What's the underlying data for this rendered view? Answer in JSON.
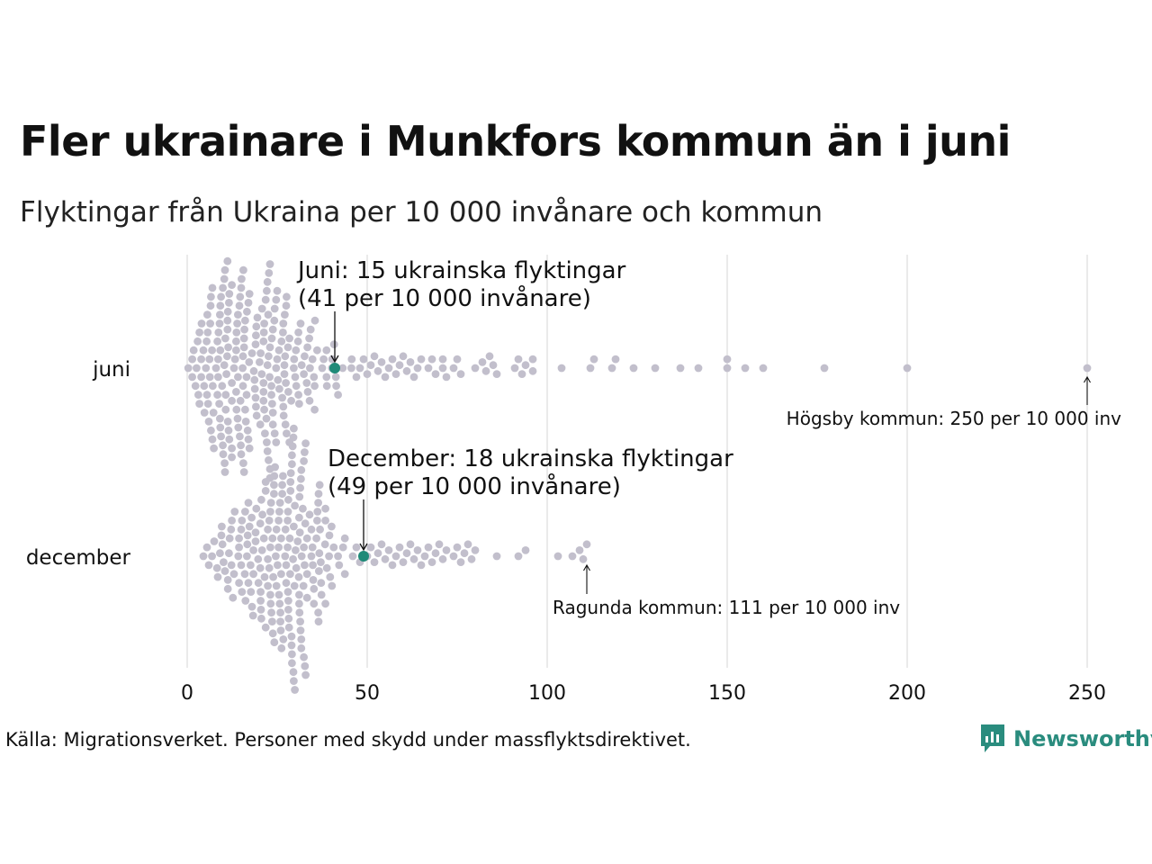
{
  "chart_data": {
    "type": "scatter",
    "subtype": "beeswarm",
    "title": "Fler ukrainare i Munkfors kommun än i juni",
    "subtitle": "Flyktingar från Ukraina per 10 000 invånare och kommun",
    "xlabel": "",
    "ylabel": "",
    "xlim": [
      0,
      250
    ],
    "x_ticks": [
      "0",
      "50",
      "100",
      "150",
      "200",
      "250"
    ],
    "grid": "vertical",
    "colors": {
      "dots": "#c2bfcc",
      "highlight": "#1f8a78",
      "grid": "#d4d4d4",
      "text": "#111111"
    },
    "series": [
      {
        "name": "juni",
        "bulk_min": 0,
        "bulk_max": 46,
        "bulk_peak": 8,
        "bulk_count": 238,
        "tail_values": [
          47,
          48,
          49,
          50,
          51,
          52,
          53,
          54,
          55,
          56,
          57,
          58,
          59,
          60,
          61,
          62,
          63,
          64,
          65,
          67,
          68,
          69,
          71,
          71,
          72,
          74,
          75,
          76,
          80,
          82,
          83,
          84,
          85,
          86,
          91,
          92,
          93,
          94,
          96,
          96,
          104,
          112,
          113,
          118,
          119,
          124,
          130,
          137,
          142,
          150,
          150,
          155,
          160,
          177,
          200,
          250
        ],
        "highlight": {
          "value": 41,
          "label_1": "Juni: 15 ukrainska flyktingar",
          "label_2": "(41 per 10 000 invånare)"
        },
        "extreme": {
          "value": 250,
          "label": "Högsby kommun: 250 per 10 000 inv"
        }
      },
      {
        "name": "december",
        "bulk_min": 4,
        "bulk_max": 45,
        "bulk_peak": 28,
        "bulk_count": 210,
        "tail_values": [
          46,
          47,
          48,
          50,
          51,
          52,
          53,
          54,
          55,
          56,
          57,
          58,
          59,
          60,
          61,
          62,
          63,
          64,
          65,
          66,
          67,
          68,
          69,
          70,
          71,
          72,
          74,
          75,
          76,
          77,
          78,
          79,
          80,
          86,
          92,
          94,
          103,
          107,
          109,
          110,
          111
        ],
        "highlight": {
          "value": 49,
          "label_1": "December: 18 ukrainska flyktingar",
          "label_2": "(49 per 10 000 invånare)"
        },
        "extreme": {
          "value": 111,
          "label": "Ragunda kommun: 111 per 10 000 inv"
        }
      }
    ]
  },
  "footer": {
    "source": "Källa: Migrationsverket. Personer med skydd under massflyktsdirektivet.",
    "brand": "Newsworthy"
  }
}
